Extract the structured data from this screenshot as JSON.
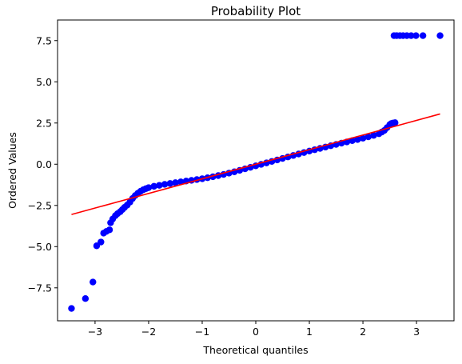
{
  "chart_data": {
    "type": "scatter",
    "title": "Probability Plot",
    "xlabel": "Theoretical quantiles",
    "ylabel": "Ordered Values",
    "xlim": [
      -3.7,
      3.7
    ],
    "ylim": [
      -9.5,
      8.75
    ],
    "xticks": [
      -3,
      -2,
      -1,
      0,
      1,
      2,
      3
    ],
    "xtick_labels": [
      "−3",
      "−2",
      "−1",
      "0",
      "1",
      "2",
      "3"
    ],
    "yticks": [
      -7.5,
      -5.0,
      -2.5,
      0.0,
      2.5,
      5.0,
      7.5
    ],
    "ytick_labels": [
      "−7.5",
      "−5.0",
      "−2.5",
      "0.0",
      "2.5",
      "5.0",
      "7.5"
    ],
    "grid": false,
    "legend": "none",
    "series": [
      {
        "kind": "points",
        "color": "#0000ff",
        "points": [
          [
            -3.44,
            -8.75
          ],
          [
            -3.18,
            -8.15
          ],
          [
            -3.04,
            -7.15
          ],
          [
            -2.97,
            -4.95
          ],
          [
            -2.89,
            -4.72
          ],
          [
            -2.84,
            -4.18
          ],
          [
            -2.79,
            -4.08
          ],
          [
            -2.73,
            -3.98
          ],
          [
            -2.71,
            -3.55
          ],
          [
            -2.67,
            -3.32
          ],
          [
            -2.62,
            -3.12
          ],
          [
            -2.58,
            -3.0
          ],
          [
            -2.53,
            -2.88
          ],
          [
            -2.49,
            -2.75
          ],
          [
            -2.45,
            -2.62
          ],
          [
            -2.4,
            -2.48
          ],
          [
            -2.35,
            -2.3
          ],
          [
            -2.3,
            -2.08
          ],
          [
            -2.25,
            -1.9
          ],
          [
            -2.2,
            -1.76
          ],
          [
            -2.15,
            -1.64
          ],
          [
            -2.1,
            -1.55
          ],
          [
            -2.05,
            -1.48
          ],
          [
            -2.0,
            -1.42
          ],
          [
            -1.9,
            -1.34
          ],
          [
            -1.8,
            -1.28
          ],
          [
            -1.7,
            -1.22
          ],
          [
            -1.6,
            -1.17
          ],
          [
            -1.5,
            -1.12
          ],
          [
            -1.4,
            -1.07
          ],
          [
            -1.3,
            -1.02
          ],
          [
            -1.2,
            -0.98
          ],
          [
            -1.1,
            -0.93
          ],
          [
            -1.0,
            -0.88
          ],
          [
            -0.9,
            -0.82
          ],
          [
            -0.8,
            -0.76
          ],
          [
            -0.7,
            -0.69
          ],
          [
            -0.6,
            -0.62
          ],
          [
            -0.5,
            -0.54
          ],
          [
            -0.4,
            -0.46
          ],
          [
            -0.3,
            -0.37
          ],
          [
            -0.2,
            -0.28
          ],
          [
            -0.1,
            -0.19
          ],
          [
            0.0,
            -0.1
          ],
          [
            0.1,
            -0.01
          ],
          [
            0.2,
            0.08
          ],
          [
            0.3,
            0.17
          ],
          [
            0.4,
            0.26
          ],
          [
            0.5,
            0.35
          ],
          [
            0.6,
            0.44
          ],
          [
            0.7,
            0.53
          ],
          [
            0.8,
            0.62
          ],
          [
            0.9,
            0.71
          ],
          [
            1.0,
            0.8
          ],
          [
            1.1,
            0.88
          ],
          [
            1.2,
            0.96
          ],
          [
            1.3,
            1.04
          ],
          [
            1.4,
            1.12
          ],
          [
            1.5,
            1.2
          ],
          [
            1.6,
            1.28
          ],
          [
            1.7,
            1.35
          ],
          [
            1.8,
            1.43
          ],
          [
            1.9,
            1.5
          ],
          [
            2.0,
            1.58
          ],
          [
            2.1,
            1.66
          ],
          [
            2.2,
            1.75
          ],
          [
            2.3,
            1.85
          ],
          [
            2.35,
            1.95
          ],
          [
            2.4,
            2.05
          ],
          [
            2.45,
            2.22
          ],
          [
            2.5,
            2.4
          ],
          [
            2.53,
            2.47
          ],
          [
            2.56,
            2.5
          ],
          [
            2.6,
            2.52
          ],
          [
            2.58,
            7.8
          ],
          [
            2.63,
            7.8
          ],
          [
            2.69,
            7.8
          ],
          [
            2.75,
            7.8
          ],
          [
            2.82,
            7.8
          ],
          [
            2.9,
            7.8
          ],
          [
            2.99,
            7.8
          ],
          [
            3.12,
            7.8
          ],
          [
            3.44,
            7.8
          ]
        ]
      },
      {
        "kind": "line",
        "color": "#ff0000",
        "x": [
          -3.44,
          3.44
        ],
        "y": [
          -3.05,
          3.05
        ]
      }
    ]
  }
}
